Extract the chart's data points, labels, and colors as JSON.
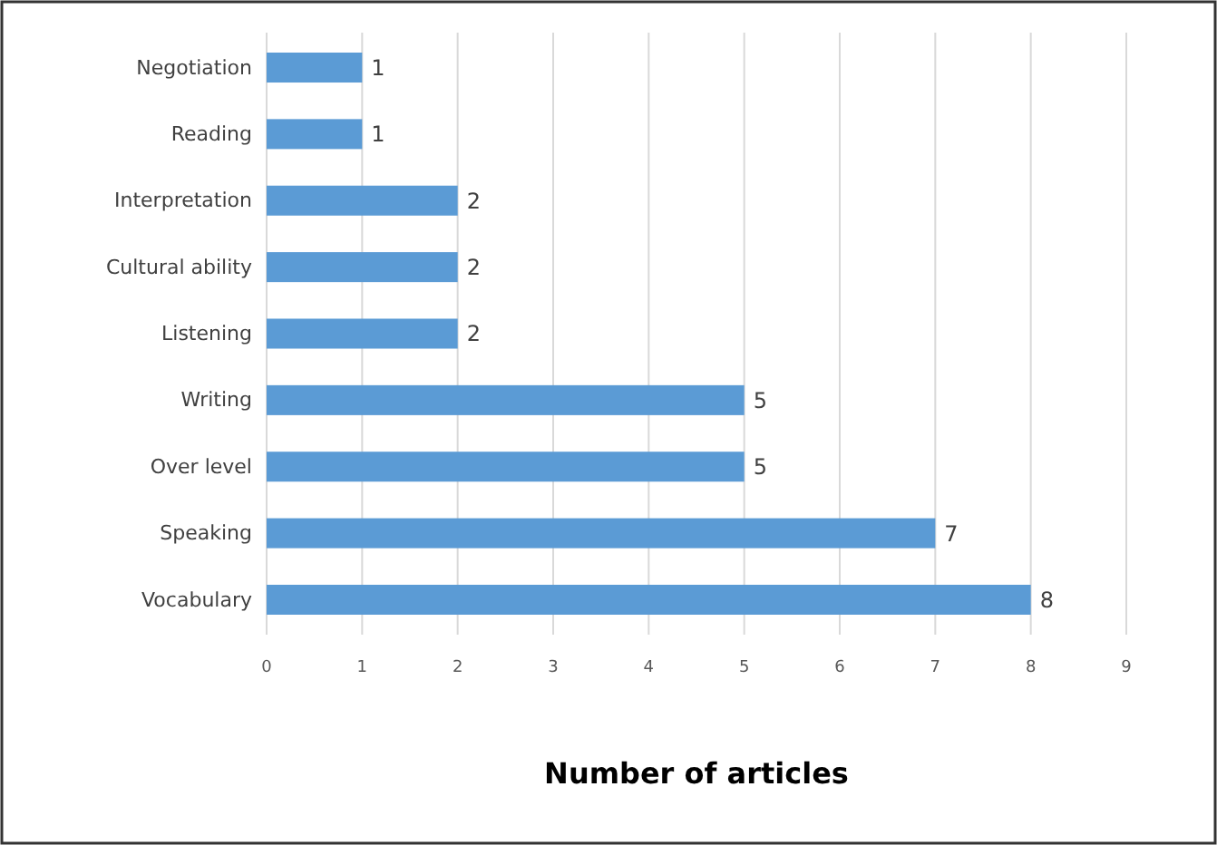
{
  "chart_data": {
    "type": "bar",
    "orientation": "horizontal",
    "xlabel": "Number of articles",
    "categories": [
      "Negotiation",
      "Reading",
      "Interpretation",
      "Cultural ability",
      "Listening",
      "Writing",
      "Over level",
      "Speaking",
      "Vocabulary"
    ],
    "values": [
      1,
      1,
      2,
      2,
      2,
      5,
      5,
      7,
      8
    ],
    "color": "#5b9bd5",
    "xlim": [
      0,
      9
    ],
    "xticks": [
      0,
      1,
      2,
      3,
      4,
      5,
      6,
      7,
      8,
      9
    ],
    "grid": "x",
    "data_labels": true
  }
}
